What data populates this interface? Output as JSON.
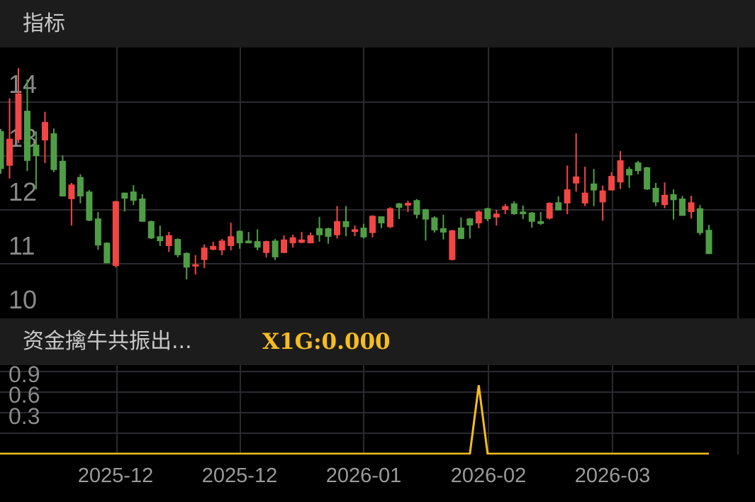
{
  "header": {
    "title": "指标"
  },
  "indicator": {
    "name": "资金擒牛共振出...",
    "value_label": "X1G:0.000",
    "line_color": "#f5bd1f"
  },
  "colors": {
    "up": "#f24645",
    "down": "#4f9e46",
    "grid": "#2a2a30",
    "background": "#000000",
    "panel": "#1c1c1c"
  },
  "x_axis": {
    "labels": [
      "2025-12",
      "2025-12",
      "2026-01",
      "2026-02",
      "2026-03"
    ]
  },
  "chart_data": [
    {
      "type": "candlestick",
      "y_ticks": [
        14,
        13,
        12,
        11,
        10
      ],
      "ylim": [
        10,
        14.9
      ],
      "up_color_meaning": "red = close above open",
      "ohlc": [
        [
          13.46,
          13.5,
          12.67,
          12.76
        ],
        [
          12.82,
          14.07,
          12.58,
          13.32
        ],
        [
          13.3,
          14.63,
          13.24,
          14.16
        ],
        [
          13.84,
          14.42,
          12.72,
          12.91
        ],
        [
          13.21,
          13.46,
          12.38,
          13.0
        ],
        [
          13.29,
          13.82,
          12.87,
          13.63
        ],
        [
          13.42,
          13.51,
          12.7,
          12.74
        ],
        [
          12.91,
          13.01,
          12.25,
          12.25
        ],
        [
          12.2,
          12.5,
          11.71,
          12.47
        ],
        [
          12.61,
          12.66,
          12.12,
          12.25
        ],
        [
          12.34,
          12.37,
          11.79,
          11.8
        ],
        [
          11.84,
          11.96,
          11.26,
          11.34
        ],
        [
          11.39,
          11.4,
          11.01,
          11.01
        ],
        [
          10.96,
          12.17,
          10.93,
          12.16
        ],
        [
          12.32,
          12.32,
          11.97,
          12.21
        ],
        [
          12.34,
          12.46,
          12.09,
          12.17
        ],
        [
          12.21,
          12.29,
          11.78,
          11.78
        ],
        [
          11.79,
          11.8,
          11.46,
          11.47
        ],
        [
          11.51,
          11.71,
          11.33,
          11.42
        ],
        [
          11.33,
          11.59,
          11.22,
          11.53
        ],
        [
          11.46,
          11.47,
          11.12,
          11.16
        ],
        [
          11.2,
          11.21,
          10.71,
          10.93
        ],
        [
          10.95,
          11.16,
          10.8,
          10.99
        ],
        [
          11.07,
          11.36,
          10.92,
          11.3
        ],
        [
          11.26,
          11.41,
          11.25,
          11.33
        ],
        [
          11.25,
          11.46,
          11.16,
          11.43
        ],
        [
          11.33,
          11.76,
          11.25,
          11.51
        ],
        [
          11.61,
          11.62,
          11.28,
          11.38
        ],
        [
          11.43,
          11.59,
          11.38,
          11.38
        ],
        [
          11.42,
          11.64,
          11.25,
          11.3
        ],
        [
          11.2,
          11.43,
          11.12,
          11.42
        ],
        [
          11.43,
          11.46,
          11.07,
          11.12
        ],
        [
          11.2,
          11.53,
          11.2,
          11.45
        ],
        [
          11.38,
          11.54,
          11.3,
          11.49
        ],
        [
          11.39,
          11.59,
          11.38,
          11.45
        ],
        [
          11.38,
          11.58,
          11.38,
          11.53
        ],
        [
          11.66,
          11.87,
          11.41,
          11.53
        ],
        [
          11.66,
          11.67,
          11.37,
          11.5
        ],
        [
          11.53,
          12.07,
          11.47,
          11.79
        ],
        [
          11.79,
          12.07,
          11.51,
          11.68
        ],
        [
          11.59,
          11.71,
          11.51,
          11.64
        ],
        [
          11.67,
          11.74,
          11.47,
          11.49
        ],
        [
          11.57,
          11.9,
          11.49,
          11.89
        ],
        [
          11.88,
          11.88,
          11.66,
          11.75
        ],
        [
          11.68,
          12.05,
          11.66,
          12.03
        ],
        [
          12.12,
          12.13,
          11.83,
          12.04
        ],
        [
          12.08,
          12.17,
          11.96,
          12.13
        ],
        [
          12.18,
          12.2,
          11.84,
          11.91
        ],
        [
          12.01,
          12.02,
          11.43,
          11.82
        ],
        [
          11.86,
          11.88,
          11.58,
          11.62
        ],
        [
          11.66,
          11.91,
          11.45,
          11.58
        ],
        [
          11.07,
          11.63,
          11.06,
          11.62
        ],
        [
          11.67,
          11.86,
          11.46,
          11.46
        ],
        [
          11.84,
          11.85,
          11.47,
          11.71
        ],
        [
          11.75,
          11.99,
          11.66,
          11.97
        ],
        [
          12.03,
          12.04,
          11.79,
          11.83
        ],
        [
          11.86,
          12.0,
          11.71,
          11.93
        ],
        [
          12.0,
          12.11,
          11.92,
          12.07
        ],
        [
          12.12,
          12.16,
          11.91,
          11.92
        ],
        [
          11.97,
          12.08,
          11.83,
          11.92
        ],
        [
          11.95,
          11.96,
          11.67,
          11.78
        ],
        [
          11.79,
          11.96,
          11.72,
          11.74
        ],
        [
          11.84,
          12.14,
          11.82,
          12.13
        ],
        [
          12.14,
          12.25,
          11.99,
          11.99
        ],
        [
          12.12,
          12.82,
          11.92,
          12.38
        ],
        [
          12.49,
          13.42,
          12.34,
          12.62
        ],
        [
          12.12,
          12.8,
          12.07,
          12.32
        ],
        [
          12.49,
          12.76,
          12.07,
          12.36
        ],
        [
          12.14,
          12.45,
          11.8,
          12.36
        ],
        [
          12.36,
          12.7,
          12.36,
          12.63
        ],
        [
          12.51,
          13.09,
          12.39,
          12.92
        ],
        [
          12.76,
          12.8,
          12.41,
          12.64
        ],
        [
          12.88,
          12.91,
          12.66,
          12.72
        ],
        [
          12.79,
          12.8,
          12.37,
          12.38
        ],
        [
          12.41,
          12.5,
          12.07,
          12.14
        ],
        [
          12.09,
          12.51,
          12.03,
          12.28
        ],
        [
          12.29,
          12.38,
          11.82,
          12.18
        ],
        [
          12.21,
          12.26,
          11.89,
          11.89
        ],
        [
          11.96,
          12.26,
          11.84,
          12.14
        ],
        [
          12.03,
          12.09,
          11.53,
          11.57
        ],
        [
          11.63,
          11.72,
          11.18,
          11.18
        ]
      ]
    },
    {
      "type": "line",
      "name": "X1G",
      "y_ticks": [
        0.9,
        0.6,
        0.3
      ],
      "ylim": [
        0,
        1.2
      ],
      "values_rule": "0 for all bars except bar index 54",
      "spike_index": 54,
      "spike_value": 1.0
    }
  ]
}
